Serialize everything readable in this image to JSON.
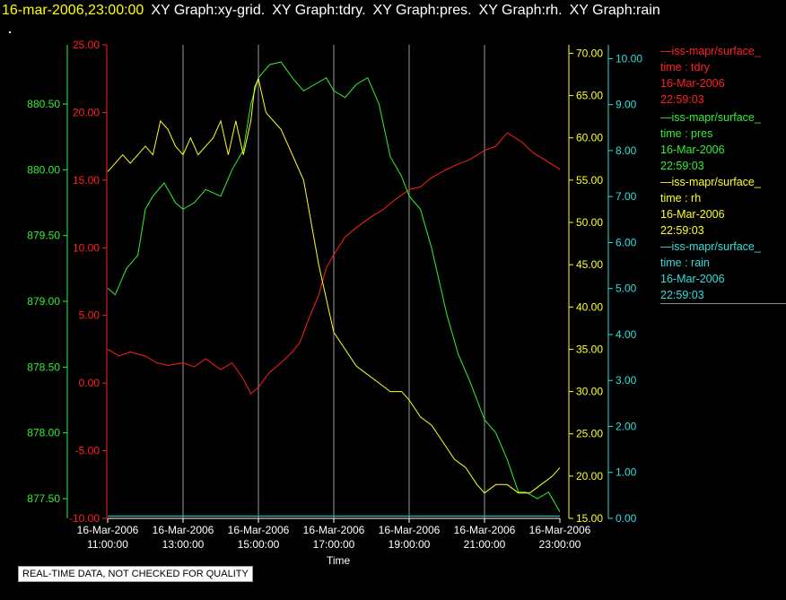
{
  "header": {
    "timestamp": "16-mar-2006,23:00:00",
    "labels": [
      "XY Graph:xy-grid.",
      "XY Graph:tdry.",
      "XY Graph:pres.",
      "XY Graph:rh.",
      "XY Graph:rain"
    ]
  },
  "notice": "REAL-TIME DATA, NOT CHECKED FOR QUALITY",
  "legend": [
    {
      "line": "—iss-mapr/surface_",
      "var": "time : tdry",
      "date": "16-Mar-2006",
      "time": "22:59:03",
      "color": "#ff2020"
    },
    {
      "line": "—iss-mapr/surface_",
      "var": "time : pres",
      "date": "16-Mar-2006",
      "time": "22:59:03",
      "color": "#33ee33"
    },
    {
      "line": "—iss-mapr/surface_",
      "var": "time : rh",
      "date": "16-Mar-2006",
      "time": "22:59:03",
      "color": "#ffff22"
    },
    {
      "line": "—iss-mapr/surface_",
      "var": "time : rain",
      "date": "16-Mar-2006",
      "time": "22:59:03",
      "color": "#33dddd"
    }
  ],
  "chart_data": {
    "type": "line",
    "xlabel": "Time",
    "x_ticks": [
      {
        "date": "16-Mar-2006",
        "time": "11:00:00",
        "hour": 11
      },
      {
        "date": "16-Mar-2006",
        "time": "13:00:00",
        "hour": 13
      },
      {
        "date": "16-Mar-2006",
        "time": "15:00:00",
        "hour": 15
      },
      {
        "date": "16-Mar-2006",
        "time": "17:00:00",
        "hour": 17
      },
      {
        "date": "16-Mar-2006",
        "time": "19:00:00",
        "hour": 19
      },
      {
        "date": "16-Mar-2006",
        "time": "21:00:00",
        "hour": 21
      },
      {
        "date": "16-Mar-2006",
        "time": "23:00:00",
        "hour": 23
      }
    ],
    "xlim": [
      11,
      23
    ],
    "grid": "vertical",
    "axes": {
      "pres": {
        "side": "left-outer",
        "color": "#33ee33",
        "ylim": [
          877.35,
          880.95
        ],
        "ticks": [
          "877.50",
          "878.00",
          "878.50",
          "879.00",
          "879.50",
          "880.00",
          "880.50"
        ]
      },
      "tdry": {
        "side": "left-inner",
        "color": "#ff2020",
        "ylim": [
          -10,
          25
        ],
        "ticks": [
          "-10.00",
          "-5.00",
          "0.00",
          "5.00",
          "10.00",
          "15.00",
          "20.00",
          "25.00"
        ]
      },
      "rh": {
        "side": "right-inner",
        "color": "#ffff22",
        "ylim": [
          15,
          71
        ],
        "ticks": [
          "15.00",
          "20.00",
          "25.00",
          "30.00",
          "35.00",
          "40.00",
          "45.00",
          "50.00",
          "55.00",
          "60.00",
          "65.00",
          "70.00"
        ]
      },
      "rain": {
        "side": "right-outer",
        "color": "#33dddd",
        "ylim": [
          0,
          10.3
        ],
        "ticks": [
          "0.00",
          "1.00",
          "2.00",
          "3.00",
          "4.00",
          "5.00",
          "6.00",
          "7.00",
          "8.00",
          "9.00",
          "10.00"
        ]
      }
    },
    "series": [
      {
        "name": "time : tdry",
        "axis": "tdry",
        "color": "#ff2020",
        "x": [
          11.0,
          11.3,
          11.6,
          12.0,
          12.3,
          12.6,
          13.0,
          13.3,
          13.6,
          14.0,
          14.3,
          14.6,
          14.8,
          15.0,
          15.3,
          15.6,
          15.9,
          16.1,
          16.3,
          16.6,
          16.8,
          17.0,
          17.3,
          17.6,
          18.0,
          18.3,
          18.6,
          19.0,
          19.3,
          19.6,
          20.0,
          20.3,
          20.6,
          21.0,
          21.3,
          21.6,
          22.0,
          22.3,
          22.6,
          23.0
        ],
        "y": [
          2.5,
          2.0,
          2.3,
          2.0,
          1.5,
          1.3,
          1.5,
          1.2,
          1.8,
          1.0,
          1.5,
          0.3,
          -0.8,
          -0.3,
          0.8,
          1.5,
          2.3,
          3.0,
          4.5,
          6.5,
          8.5,
          9.5,
          10.8,
          11.5,
          12.3,
          12.8,
          13.5,
          14.3,
          14.5,
          15.2,
          15.8,
          16.2,
          16.5,
          17.2,
          17.5,
          18.5,
          17.8,
          17.0,
          16.5,
          15.8
        ]
      },
      {
        "name": "time : pres",
        "axis": "pres",
        "color": "#33ee33",
        "x": [
          11.0,
          11.2,
          11.5,
          11.8,
          12.0,
          12.2,
          12.5,
          12.8,
          13.0,
          13.3,
          13.6,
          14.0,
          14.3,
          14.6,
          14.8,
          15.0,
          15.3,
          15.6,
          15.9,
          16.2,
          16.5,
          16.8,
          17.0,
          17.3,
          17.6,
          17.9,
          18.2,
          18.5,
          18.8,
          19.0,
          19.3,
          19.6,
          20.0,
          20.3,
          20.6,
          21.0,
          21.3,
          21.6,
          21.9,
          22.1,
          22.4,
          22.7,
          23.0
        ],
        "y": [
          879.1,
          879.05,
          879.25,
          879.35,
          879.7,
          879.8,
          879.9,
          879.75,
          879.7,
          879.75,
          879.85,
          879.8,
          880.0,
          880.15,
          880.5,
          880.7,
          880.8,
          880.82,
          880.7,
          880.6,
          880.65,
          880.7,
          880.6,
          880.55,
          880.65,
          880.7,
          880.5,
          880.1,
          879.95,
          879.8,
          879.7,
          879.4,
          878.9,
          878.6,
          878.4,
          878.1,
          878.0,
          877.8,
          877.55,
          877.55,
          877.5,
          877.55,
          877.4
        ]
      },
      {
        "name": "time : rh",
        "axis": "rh",
        "color": "#ffff22",
        "x": [
          11.0,
          11.2,
          11.4,
          11.6,
          11.8,
          12.0,
          12.2,
          12.4,
          12.6,
          12.8,
          13.0,
          13.2,
          13.4,
          13.6,
          13.8,
          14.0,
          14.2,
          14.4,
          14.6,
          14.8,
          14.9,
          15.0,
          15.2,
          15.4,
          15.6,
          15.8,
          16.0,
          16.2,
          16.4,
          16.6,
          16.8,
          17.0,
          17.3,
          17.6,
          17.9,
          18.2,
          18.5,
          18.8,
          19.0,
          19.3,
          19.6,
          19.9,
          20.2,
          20.5,
          20.8,
          21.0,
          21.3,
          21.6,
          21.9,
          22.2,
          22.5,
          22.8,
          23.0
        ],
        "y": [
          56,
          57,
          58,
          57,
          58,
          59,
          58,
          62,
          61,
          59,
          58,
          60,
          58,
          59,
          60,
          62,
          58,
          62,
          58,
          62,
          66,
          67,
          63,
          62,
          61,
          59,
          57,
          55,
          50,
          45,
          41,
          37,
          35,
          33,
          32,
          31,
          30,
          30,
          29,
          27,
          26,
          24,
          22,
          21,
          19,
          18,
          19,
          19,
          18,
          18,
          19,
          20,
          21
        ]
      },
      {
        "name": "time : rain",
        "axis": "rain",
        "color": "#33dddd",
        "x": [
          11,
          23
        ],
        "y": [
          0.05,
          0.05
        ]
      }
    ]
  }
}
